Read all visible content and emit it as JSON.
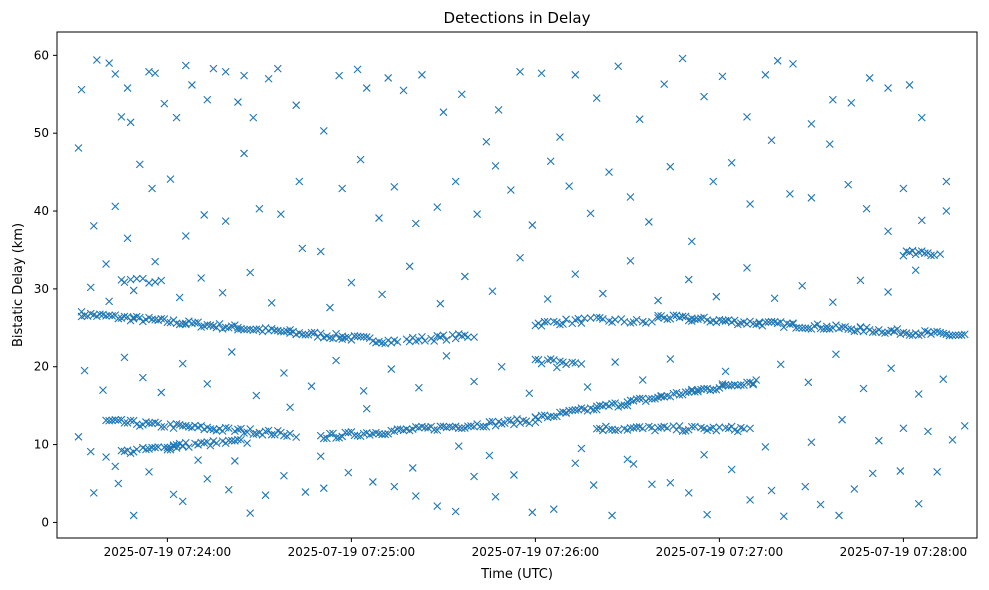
{
  "chart_data": {
    "type": "scatter",
    "title": "Detections in Delay",
    "xlabel": "Time (UTC)",
    "ylabel": "Bistatic Delay (km)",
    "marker": "x",
    "color": "#1f77b4",
    "grid": false,
    "x_type": "time",
    "x_range": [
      "2025-07-19 07:23:24",
      "2025-07-19 07:28:24"
    ],
    "ylim": [
      -2,
      63
    ],
    "x_ticks": [
      "2025-07-19 07:24:00",
      "2025-07-19 07:25:00",
      "2025-07-19 07:26:00",
      "2025-07-19 07:27:00",
      "2025-07-19 07:28:00"
    ],
    "y_ticks": [
      "0",
      "10",
      "20",
      "30",
      "40",
      "50",
      "60"
    ],
    "tracks": [
      {
        "from": [
          "2025-07-19 07:23:32",
          26.8
        ],
        "to": [
          "2025-07-19 07:25:15",
          23.2
        ],
        "count": 110
      },
      {
        "from": [
          "2025-07-19 07:25:18",
          23.4
        ],
        "to": [
          "2025-07-19 07:25:40",
          24.0
        ],
        "count": 20
      },
      {
        "from": [
          "2025-07-19 07:26:00",
          25.5
        ],
        "to": [
          "2025-07-19 07:26:18",
          26.0
        ],
        "count": 16
      },
      {
        "from": [
          "2025-07-19 07:26:20",
          26.0
        ],
        "to": [
          "2025-07-19 07:26:38",
          25.7
        ],
        "count": 14
      },
      {
        "from": [
          "2025-07-19 07:26:40",
          26.4
        ],
        "to": [
          "2025-07-19 07:28:20",
          24.0
        ],
        "count": 110
      },
      {
        "from": [
          "2025-07-19 07:23:40",
          13.0
        ],
        "to": [
          "2025-07-19 07:24:42",
          11.3
        ],
        "count": 60
      },
      {
        "from": [
          "2025-07-19 07:23:45",
          9.0
        ],
        "to": [
          "2025-07-19 07:24:05",
          9.8
        ],
        "count": 18
      },
      {
        "from": [
          "2025-07-19 07:24:00",
          9.8
        ],
        "to": [
          "2025-07-19 07:24:26",
          10.4
        ],
        "count": 24
      },
      {
        "from": [
          "2025-07-19 07:24:50",
          11.0
        ],
        "to": [
          "2025-07-19 07:26:00",
          13.1
        ],
        "count": 70
      },
      {
        "from": [
          "2025-07-19 07:26:00",
          13.3
        ],
        "to": [
          "2025-07-19 07:27:12",
          18.2
        ],
        "count": 80
      },
      {
        "from": [
          "2025-07-19 07:26:20",
          12.1
        ],
        "to": [
          "2025-07-19 07:27:10",
          12.0
        ],
        "count": 45
      },
      {
        "from": [
          "2025-07-19 07:26:00",
          20.8
        ],
        "to": [
          "2025-07-19 07:26:15",
          20.4
        ],
        "count": 12
      },
      {
        "from": [
          "2025-07-19 07:28:00",
          34.6
        ],
        "to": [
          "2025-07-19 07:28:12",
          34.5
        ],
        "count": 12
      },
      {
        "from": [
          "2025-07-19 07:23:45",
          31.2
        ],
        "to": [
          "2025-07-19 07:23:58",
          31.0
        ],
        "count": 8
      }
    ],
    "scattered": [
      [
        "2025-07-19 07:23:31",
        48.1
      ],
      [
        "2025-07-19 07:23:32",
        55.6
      ],
      [
        "2025-07-19 07:23:37",
        59.4
      ],
      [
        "2025-07-19 07:23:41",
        59.0
      ],
      [
        "2025-07-19 07:23:43",
        57.6
      ],
      [
        "2025-07-19 07:23:45",
        52.1
      ],
      [
        "2025-07-19 07:23:47",
        55.8
      ],
      [
        "2025-07-19 07:23:48",
        51.4
      ],
      [
        "2025-07-19 07:23:51",
        46.0
      ],
      [
        "2025-07-19 07:23:54",
        57.9
      ],
      [
        "2025-07-19 07:23:56",
        57.7
      ],
      [
        "2025-07-19 07:23:59",
        53.8
      ],
      [
        "2025-07-19 07:24:03",
        52.0
      ],
      [
        "2025-07-19 07:24:06",
        58.7
      ],
      [
        "2025-07-19 07:24:08",
        56.2
      ],
      [
        "2025-07-19 07:24:13",
        54.3
      ],
      [
        "2025-07-19 07:24:15",
        58.3
      ],
      [
        "2025-07-19 07:24:19",
        57.9
      ],
      [
        "2025-07-19 07:24:23",
        54.0
      ],
      [
        "2025-07-19 07:24:25",
        57.4
      ],
      [
        "2025-07-19 07:24:28",
        52.0
      ],
      [
        "2025-07-19 07:24:33",
        57.0
      ],
      [
        "2025-07-19 07:24:36",
        58.3
      ],
      [
        "2025-07-19 07:24:42",
        53.6
      ],
      [
        "2025-07-19 07:24:51",
        50.3
      ],
      [
        "2025-07-19 07:24:56",
        57.4
      ],
      [
        "2025-07-19 07:25:02",
        58.2
      ],
      [
        "2025-07-19 07:25:05",
        55.8
      ],
      [
        "2025-07-19 07:25:12",
        57.1
      ],
      [
        "2025-07-19 07:25:17",
        55.5
      ],
      [
        "2025-07-19 07:25:23",
        57.5
      ],
      [
        "2025-07-19 07:25:30",
        52.7
      ],
      [
        "2025-07-19 07:25:36",
        55.0
      ],
      [
        "2025-07-19 07:25:44",
        48.9
      ],
      [
        "2025-07-19 07:25:48",
        53.0
      ],
      [
        "2025-07-19 07:25:55",
        57.9
      ],
      [
        "2025-07-19 07:26:02",
        57.7
      ],
      [
        "2025-07-19 07:26:08",
        49.5
      ],
      [
        "2025-07-19 07:26:13",
        57.5
      ],
      [
        "2025-07-19 07:26:20",
        54.5
      ],
      [
        "2025-07-19 07:26:27",
        58.6
      ],
      [
        "2025-07-19 07:26:34",
        51.8
      ],
      [
        "2025-07-19 07:26:42",
        56.3
      ],
      [
        "2025-07-19 07:26:48",
        59.6
      ],
      [
        "2025-07-19 07:26:55",
        54.7
      ],
      [
        "2025-07-19 07:27:01",
        57.3
      ],
      [
        "2025-07-19 07:27:09",
        52.1
      ],
      [
        "2025-07-19 07:27:15",
        57.5
      ],
      [
        "2025-07-19 07:27:19",
        59.3
      ],
      [
        "2025-07-19 07:27:24",
        58.9
      ],
      [
        "2025-07-19 07:27:30",
        51.2
      ],
      [
        "2025-07-19 07:27:37",
        54.3
      ],
      [
        "2025-07-19 07:27:43",
        53.9
      ],
      [
        "2025-07-19 07:27:49",
        57.1
      ],
      [
        "2025-07-19 07:27:55",
        55.8
      ],
      [
        "2025-07-19 07:28:02",
        56.2
      ],
      [
        "2025-07-19 07:28:06",
        52.0
      ],
      [
        "2025-07-19 07:28:14",
        43.8
      ],
      [
        "2025-07-19 07:23:36",
        38.1
      ],
      [
        "2025-07-19 07:23:40",
        33.2
      ],
      [
        "2025-07-19 07:23:43",
        40.6
      ],
      [
        "2025-07-19 07:23:47",
        36.5
      ],
      [
        "2025-07-19 07:23:55",
        42.9
      ],
      [
        "2025-07-19 07:24:01",
        44.1
      ],
      [
        "2025-07-19 07:24:06",
        36.8
      ],
      [
        "2025-07-19 07:24:12",
        39.5
      ],
      [
        "2025-07-19 07:24:19",
        38.7
      ],
      [
        "2025-07-19 07:24:25",
        47.4
      ],
      [
        "2025-07-19 07:24:30",
        40.3
      ],
      [
        "2025-07-19 07:24:37",
        39.6
      ],
      [
        "2025-07-19 07:24:43",
        43.8
      ],
      [
        "2025-07-19 07:24:50",
        34.8
      ],
      [
        "2025-07-19 07:24:57",
        42.9
      ],
      [
        "2025-07-19 07:25:03",
        46.6
      ],
      [
        "2025-07-19 07:25:09",
        39.1
      ],
      [
        "2025-07-19 07:25:14",
        43.1
      ],
      [
        "2025-07-19 07:25:21",
        38.4
      ],
      [
        "2025-07-19 07:25:28",
        40.5
      ],
      [
        "2025-07-19 07:25:34",
        43.8
      ],
      [
        "2025-07-19 07:25:41",
        39.6
      ],
      [
        "2025-07-19 07:25:47",
        45.8
      ],
      [
        "2025-07-19 07:25:52",
        42.7
      ],
      [
        "2025-07-19 07:25:59",
        38.2
      ],
      [
        "2025-07-19 07:26:05",
        46.4
      ],
      [
        "2025-07-19 07:26:11",
        43.2
      ],
      [
        "2025-07-19 07:26:18",
        39.7
      ],
      [
        "2025-07-19 07:26:24",
        45.0
      ],
      [
        "2025-07-19 07:26:31",
        41.8
      ],
      [
        "2025-07-19 07:26:37",
        38.6
      ],
      [
        "2025-07-19 07:26:44",
        45.7
      ],
      [
        "2025-07-19 07:26:51",
        36.1
      ],
      [
        "2025-07-19 07:26:58",
        43.8
      ],
      [
        "2025-07-19 07:27:04",
        46.2
      ],
      [
        "2025-07-19 07:27:10",
        40.9
      ],
      [
        "2025-07-19 07:27:17",
        49.1
      ],
      [
        "2025-07-19 07:27:23",
        42.2
      ],
      [
        "2025-07-19 07:27:30",
        41.7
      ],
      [
        "2025-07-19 07:27:36",
        48.6
      ],
      [
        "2025-07-19 07:27:42",
        43.4
      ],
      [
        "2025-07-19 07:27:48",
        40.3
      ],
      [
        "2025-07-19 07:27:55",
        37.4
      ],
      [
        "2025-07-19 07:28:00",
        42.9
      ],
      [
        "2025-07-19 07:28:06",
        38.8
      ],
      [
        "2025-07-19 07:28:14",
        40.0
      ],
      [
        "2025-07-19 07:23:35",
        30.2
      ],
      [
        "2025-07-19 07:23:41",
        28.4
      ],
      [
        "2025-07-19 07:23:49",
        29.8
      ],
      [
        "2025-07-19 07:23:56",
        33.5
      ],
      [
        "2025-07-19 07:24:04",
        28.9
      ],
      [
        "2025-07-19 07:24:11",
        31.4
      ],
      [
        "2025-07-19 07:24:18",
        29.5
      ],
      [
        "2025-07-19 07:24:27",
        32.1
      ],
      [
        "2025-07-19 07:24:34",
        28.2
      ],
      [
        "2025-07-19 07:24:44",
        35.2
      ],
      [
        "2025-07-19 07:24:53",
        27.6
      ],
      [
        "2025-07-19 07:25:00",
        30.8
      ],
      [
        "2025-07-19 07:25:10",
        29.3
      ],
      [
        "2025-07-19 07:25:19",
        32.9
      ],
      [
        "2025-07-19 07:25:29",
        28.1
      ],
      [
        "2025-07-19 07:25:37",
        31.6
      ],
      [
        "2025-07-19 07:25:46",
        29.7
      ],
      [
        "2025-07-19 07:25:55",
        34.0
      ],
      [
        "2025-07-19 07:26:04",
        28.7
      ],
      [
        "2025-07-19 07:26:13",
        31.9
      ],
      [
        "2025-07-19 07:26:22",
        29.4
      ],
      [
        "2025-07-19 07:26:31",
        33.6
      ],
      [
        "2025-07-19 07:26:40",
        28.5
      ],
      [
        "2025-07-19 07:26:50",
        31.2
      ],
      [
        "2025-07-19 07:26:59",
        29.0
      ],
      [
        "2025-07-19 07:27:09",
        32.7
      ],
      [
        "2025-07-19 07:27:18",
        28.8
      ],
      [
        "2025-07-19 07:27:27",
        30.4
      ],
      [
        "2025-07-19 07:27:37",
        28.3
      ],
      [
        "2025-07-19 07:27:46",
        31.1
      ],
      [
        "2025-07-19 07:27:55",
        29.6
      ],
      [
        "2025-07-19 07:28:04",
        32.4
      ],
      [
        "2025-07-19 07:23:33",
        19.5
      ],
      [
        "2025-07-19 07:23:39",
        17.0
      ],
      [
        "2025-07-19 07:23:46",
        21.2
      ],
      [
        "2025-07-19 07:23:52",
        18.6
      ],
      [
        "2025-07-19 07:23:58",
        16.7
      ],
      [
        "2025-07-19 07:24:05",
        20.4
      ],
      [
        "2025-07-19 07:24:13",
        17.8
      ],
      [
        "2025-07-19 07:24:21",
        21.9
      ],
      [
        "2025-07-19 07:24:29",
        16.3
      ],
      [
        "2025-07-19 07:24:38",
        19.2
      ],
      [
        "2025-07-19 07:24:47",
        17.5
      ],
      [
        "2025-07-19 07:24:55",
        20.8
      ],
      [
        "2025-07-19 07:25:04",
        16.9
      ],
      [
        "2025-07-19 07:25:13",
        19.7
      ],
      [
        "2025-07-19 07:25:22",
        17.3
      ],
      [
        "2025-07-19 07:25:31",
        21.4
      ],
      [
        "2025-07-19 07:25:40",
        18.1
      ],
      [
        "2025-07-19 07:25:49",
        20.0
      ],
      [
        "2025-07-19 07:25:58",
        16.6
      ],
      [
        "2025-07-19 07:26:07",
        19.9
      ],
      [
        "2025-07-19 07:26:17",
        17.4
      ],
      [
        "2025-07-19 07:26:26",
        20.6
      ],
      [
        "2025-07-19 07:26:35",
        18.3
      ],
      [
        "2025-07-19 07:26:44",
        21.0
      ],
      [
        "2025-07-19 07:26:53",
        16.8
      ],
      [
        "2025-07-19 07:27:02",
        19.4
      ],
      [
        "2025-07-19 07:27:11",
        17.7
      ],
      [
        "2025-07-19 07:27:20",
        20.3
      ],
      [
        "2025-07-19 07:27:29",
        18.0
      ],
      [
        "2025-07-19 07:27:38",
        21.6
      ],
      [
        "2025-07-19 07:27:47",
        17.2
      ],
      [
        "2025-07-19 07:27:56",
        19.8
      ],
      [
        "2025-07-19 07:28:05",
        16.5
      ],
      [
        "2025-07-19 07:28:13",
        18.4
      ],
      [
        "2025-07-19 07:23:36",
        3.8
      ],
      [
        "2025-07-19 07:23:44",
        5.0
      ],
      [
        "2025-07-19 07:23:49",
        0.9
      ],
      [
        "2025-07-19 07:23:54",
        6.5
      ],
      [
        "2025-07-19 07:24:02",
        3.6
      ],
      [
        "2025-07-19 07:24:05",
        2.7
      ],
      [
        "2025-07-19 07:24:13",
        5.6
      ],
      [
        "2025-07-19 07:24:20",
        4.2
      ],
      [
        "2025-07-19 07:24:27",
        1.2
      ],
      [
        "2025-07-19 07:24:32",
        3.5
      ],
      [
        "2025-07-19 07:24:38",
        6.0
      ],
      [
        "2025-07-19 07:24:45",
        3.9
      ],
      [
        "2025-07-19 07:24:51",
        4.4
      ],
      [
        "2025-07-19 07:24:59",
        6.4
      ],
      [
        "2025-07-19 07:25:07",
        5.2
      ],
      [
        "2025-07-19 07:25:14",
        4.6
      ],
      [
        "2025-07-19 07:25:21",
        3.4
      ],
      [
        "2025-07-19 07:25:28",
        2.1
      ],
      [
        "2025-07-19 07:25:34",
        1.4
      ],
      [
        "2025-07-19 07:25:40",
        5.9
      ],
      [
        "2025-07-19 07:25:47",
        3.3
      ],
      [
        "2025-07-19 07:25:53",
        6.1
      ],
      [
        "2025-07-19 07:25:59",
        1.3
      ],
      [
        "2025-07-19 07:26:06",
        1.7
      ],
      [
        "2025-07-19 07:26:13",
        7.6
      ],
      [
        "2025-07-19 07:26:19",
        4.8
      ],
      [
        "2025-07-19 07:26:25",
        0.9
      ],
      [
        "2025-07-19 07:26:32",
        7.5
      ],
      [
        "2025-07-19 07:26:38",
        4.9
      ],
      [
        "2025-07-19 07:26:44",
        5.1
      ],
      [
        "2025-07-19 07:26:50",
        3.8
      ],
      [
        "2025-07-19 07:26:56",
        1.0
      ],
      [
        "2025-07-19 07:27:04",
        6.8
      ],
      [
        "2025-07-19 07:27:10",
        2.9
      ],
      [
        "2025-07-19 07:27:17",
        4.1
      ],
      [
        "2025-07-19 07:27:21",
        0.8
      ],
      [
        "2025-07-19 07:27:28",
        4.6
      ],
      [
        "2025-07-19 07:27:33",
        2.3
      ],
      [
        "2025-07-19 07:27:39",
        0.9
      ],
      [
        "2025-07-19 07:27:44",
        4.3
      ],
      [
        "2025-07-19 07:27:50",
        6.3
      ],
      [
        "2025-07-19 07:27:59",
        6.6
      ],
      [
        "2025-07-19 07:28:05",
        2.4
      ],
      [
        "2025-07-19 07:28:11",
        6.5
      ],
      [
        "2025-07-19 07:23:31",
        11.0
      ],
      [
        "2025-07-19 07:23:35",
        9.1
      ],
      [
        "2025-07-19 07:23:40",
        8.4
      ],
      [
        "2025-07-19 07:23:43",
        7.2
      ],
      [
        "2025-07-19 07:24:10",
        8.0
      ],
      [
        "2025-07-19 07:24:22",
        7.9
      ],
      [
        "2025-07-19 07:24:40",
        14.8
      ],
      [
        "2025-07-19 07:24:50",
        8.5
      ],
      [
        "2025-07-19 07:25:05",
        14.6
      ],
      [
        "2025-07-19 07:25:20",
        7.0
      ],
      [
        "2025-07-19 07:25:35",
        9.8
      ],
      [
        "2025-07-19 07:25:45",
        8.6
      ],
      [
        "2025-07-19 07:26:15",
        9.5
      ],
      [
        "2025-07-19 07:26:30",
        8.1
      ],
      [
        "2025-07-19 07:26:55",
        8.7
      ],
      [
        "2025-07-19 07:27:15",
        9.7
      ],
      [
        "2025-07-19 07:27:30",
        10.3
      ],
      [
        "2025-07-19 07:27:40",
        13.2
      ],
      [
        "2025-07-19 07:27:52",
        10.5
      ],
      [
        "2025-07-19 07:28:00",
        12.1
      ],
      [
        "2025-07-19 07:28:08",
        11.7
      ],
      [
        "2025-07-19 07:28:16",
        10.6
      ],
      [
        "2025-07-19 07:28:20",
        12.4
      ]
    ]
  }
}
